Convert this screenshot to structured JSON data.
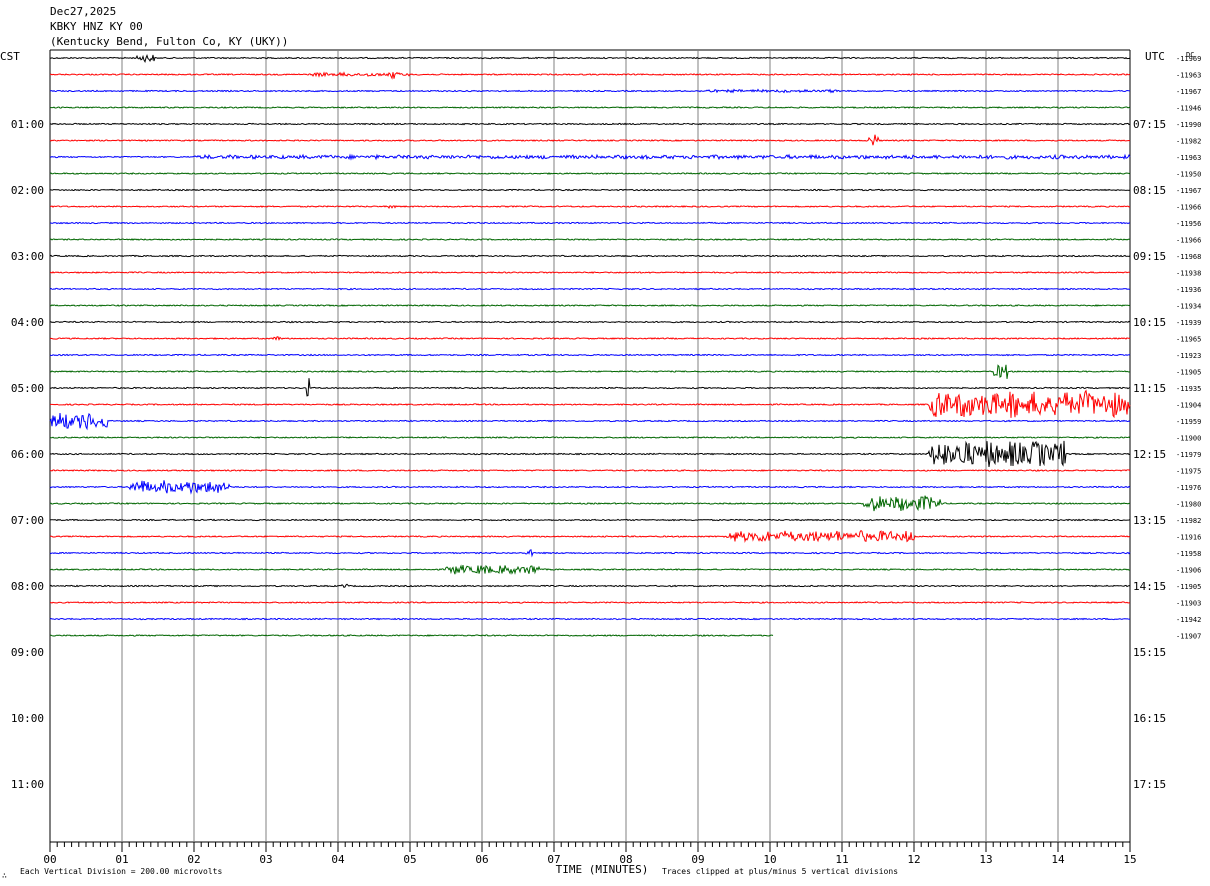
{
  "header": {
    "date": "Dec27,2025",
    "station": "KBKY HNZ KY 00",
    "location": "(Kentucky Bend, Fulton Co, KY (UKY))"
  },
  "left_zone_label": "CST",
  "right_zone_label": "UTC",
  "dc_header": "DC",
  "footer": {
    "left_note": "Each Vertical Division =  200.00 microvolts",
    "right_note": "Traces clipped at plus/minus 5 vertical divisions",
    "mark": "∴"
  },
  "colors": {
    "black": "#000000",
    "red": "#ff0000",
    "blue": "#0000ff",
    "green": "#006600",
    "grid": "#808080"
  },
  "chart_data": {
    "type": "line",
    "title": "",
    "xlabel": "TIME (MINUTES)",
    "ylabel": "",
    "xlim": [
      0,
      15
    ],
    "x_ticks": [
      "00",
      "01",
      "02",
      "03",
      "04",
      "05",
      "06",
      "07",
      "08",
      "09",
      "10",
      "11",
      "12",
      "13",
      "14",
      "15"
    ],
    "left_hour_labels": [
      "01:00",
      "02:00",
      "03:00",
      "04:00",
      "05:00",
      "06:00",
      "07:00",
      "08:00",
      "09:00",
      "10:00",
      "11:00"
    ],
    "right_hour_labels": [
      "07:15",
      "08:15",
      "09:15",
      "10:15",
      "11:15",
      "12:15",
      "13:15",
      "14:15",
      "15:15",
      "16:15",
      "17:15"
    ],
    "trace_color_cycle": [
      "black",
      "red",
      "blue",
      "green"
    ],
    "trace_count": 36,
    "last_trace_end_minute": 10.05,
    "dc_offsets": [
      "-11969",
      "-11963",
      "-11967",
      "-11946",
      "-11990",
      "-11982",
      "-11963",
      "-11950",
      "-11967",
      "-11966",
      "-11956",
      "-11966",
      "-11968",
      "-11938",
      "-11936",
      "-11934",
      "-11939",
      "-11965",
      "-11923",
      "-11905",
      "-11935",
      "-11904",
      "-11959",
      "-11900",
      "-11979",
      "-11975",
      "-11976",
      "-11980",
      "-11982",
      "-11916",
      "-11958",
      "-11906",
      "-11905",
      "-11903",
      "-11942",
      "-11907"
    ],
    "events": [
      {
        "trace": 0,
        "start": 1.2,
        "end": 1.45,
        "amp": 4,
        "kind": "burst"
      },
      {
        "trace": 1,
        "start": 3.6,
        "end": 5.0,
        "amp": 2,
        "kind": "burst"
      },
      {
        "trace": 1,
        "start": 4.75,
        "end": 4.8,
        "amp": 8,
        "kind": "spike"
      },
      {
        "trace": 2,
        "start": 9.0,
        "end": 11.0,
        "amp": 1.5,
        "kind": "burst"
      },
      {
        "trace": 5,
        "start": 11.35,
        "end": 11.5,
        "amp": 7,
        "kind": "burst"
      },
      {
        "trace": 6,
        "start": 2.0,
        "end": 15.0,
        "amp": 2,
        "kind": "burst"
      },
      {
        "trace": 9,
        "start": 4.7,
        "end": 4.8,
        "amp": 3,
        "kind": "burst"
      },
      {
        "trace": 17,
        "start": 3.1,
        "end": 3.2,
        "amp": 3,
        "kind": "burst"
      },
      {
        "trace": 19,
        "start": 13.1,
        "end": 13.3,
        "amp": 8,
        "kind": "burst"
      },
      {
        "trace": 20,
        "start": 3.55,
        "end": 3.6,
        "amp": 10,
        "kind": "spike"
      },
      {
        "trace": 21,
        "start": 12.2,
        "end": 15.0,
        "amp": 14,
        "kind": "burst"
      },
      {
        "trace": 22,
        "start": 0.0,
        "end": 0.8,
        "amp": 9,
        "kind": "burst"
      },
      {
        "trace": 24,
        "start": 12.2,
        "end": 14.1,
        "amp": 14,
        "kind": "burst"
      },
      {
        "trace": 26,
        "start": 1.1,
        "end": 2.5,
        "amp": 7,
        "kind": "burst"
      },
      {
        "trace": 27,
        "start": 11.3,
        "end": 12.4,
        "amp": 8,
        "kind": "burst"
      },
      {
        "trace": 29,
        "start": 9.4,
        "end": 12.0,
        "amp": 6,
        "kind": "burst"
      },
      {
        "trace": 30,
        "start": 6.6,
        "end": 6.7,
        "amp": 4,
        "kind": "burst"
      },
      {
        "trace": 31,
        "start": 5.5,
        "end": 6.8,
        "amp": 5,
        "kind": "burst"
      },
      {
        "trace": 32,
        "start": 4.05,
        "end": 4.15,
        "amp": 3,
        "kind": "burst"
      }
    ]
  }
}
